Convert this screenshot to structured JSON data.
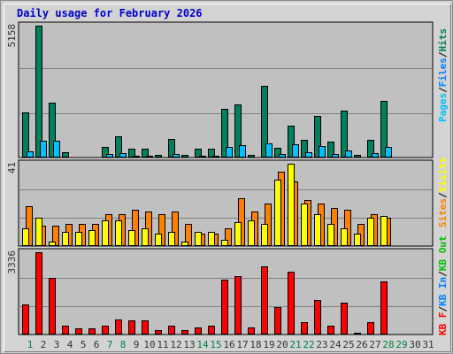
{
  "title": "Daily usage for February 2026",
  "colors": {
    "pages": "#00c0ff",
    "files": "#0080ff",
    "hits": "#00805c",
    "visits": "#ffff00",
    "sites": "#ff8000",
    "kbout": "#00c000",
    "kbin": "#0080ff",
    "kbf": "#ff0000",
    "text_gray": "#333333",
    "day_green": "#008040",
    "slash": "#000000"
  },
  "chart_data": [
    {
      "type": "bar",
      "name": "hits-files-pages",
      "ymax_label": "5158",
      "ylim": [
        0,
        5158
      ],
      "legend": [
        "Pages",
        "Files",
        "Hits"
      ],
      "categories": [
        1,
        2,
        3,
        4,
        5,
        6,
        7,
        8,
        9,
        10,
        11,
        12,
        13,
        14,
        15,
        16,
        17,
        18,
        19,
        20,
        21,
        22,
        23,
        24,
        25,
        26,
        27,
        28,
        29,
        30,
        31
      ],
      "series": [
        {
          "name": "Hits",
          "values": [
            1750,
            5158,
            2150,
            210,
            50,
            50,
            430,
            830,
            330,
            330,
            90,
            730,
            100,
            330,
            330,
            1910,
            2090,
            90,
            2790,
            380,
            1230,
            690,
            1620,
            610,
            1840,
            90,
            690,
            2210,
            0,
            0,
            0
          ]
        },
        {
          "name": "Pages",
          "values": [
            230,
            650,
            650,
            40,
            10,
            10,
            140,
            170,
            70,
            70,
            20,
            130,
            20,
            70,
            70,
            430,
            480,
            30,
            540,
            130,
            510,
            220,
            460,
            140,
            270,
            20,
            190,
            430,
            0,
            0,
            0
          ]
        }
      ]
    },
    {
      "type": "bar",
      "name": "visits-sites",
      "ymax_label": "41",
      "ylim": [
        0,
        41
      ],
      "legend": [
        "Visits",
        "Sites"
      ],
      "categories": [
        1,
        2,
        3,
        4,
        5,
        6,
        7,
        8,
        9,
        10,
        11,
        12,
        13,
        14,
        15,
        16,
        17,
        18,
        19,
        20,
        21,
        22,
        23,
        24,
        25,
        26,
        27,
        28,
        29,
        30,
        31
      ],
      "series": [
        {
          "name": "Visits",
          "values": [
            9,
            14,
            2,
            7,
            7,
            8,
            13,
            13,
            8,
            9,
            6,
            7,
            2,
            7,
            7,
            3,
            12,
            13,
            11,
            33,
            41,
            21,
            16,
            11,
            9,
            6,
            14,
            15,
            0,
            0,
            0
          ]
        },
        {
          "name": "Sites",
          "values": [
            20,
            10,
            10,
            11,
            11,
            11,
            16,
            16,
            18,
            17,
            16,
            17,
            11,
            6,
            6,
            9,
            24,
            17,
            21,
            37,
            32,
            23,
            21,
            19,
            18,
            11,
            16,
            14,
            0,
            0,
            0
          ]
        }
      ]
    },
    {
      "type": "bar",
      "name": "kbf",
      "ymax_label": "3336",
      "ylim": [
        0,
        3336
      ],
      "legend": [
        "KB F",
        "KB In",
        "KB Out"
      ],
      "categories": [
        1,
        2,
        3,
        4,
        5,
        6,
        7,
        8,
        9,
        10,
        11,
        12,
        13,
        14,
        15,
        16,
        17,
        18,
        19,
        20,
        21,
        22,
        23,
        24,
        25,
        26,
        27,
        28,
        29,
        30,
        31
      ],
      "series": [
        {
          "name": "KB F",
          "values": [
            1220,
            3336,
            2300,
            370,
            240,
            240,
            370,
            600,
            560,
            560,
            170,
            370,
            170,
            270,
            370,
            2230,
            2360,
            270,
            2750,
            1120,
            2530,
            520,
            1400,
            370,
            1290,
            80,
            520,
            2140,
            0,
            0,
            0
          ]
        }
      ]
    }
  ],
  "day_labels": [
    {
      "text": "1",
      "weekend": true
    },
    {
      "text": "2",
      "weekend": false
    },
    {
      "text": "3",
      "weekend": false
    },
    {
      "text": "4",
      "weekend": false
    },
    {
      "text": "5",
      "weekend": false
    },
    {
      "text": "6",
      "weekend": false
    },
    {
      "text": "7",
      "weekend": true
    },
    {
      "text": "8",
      "weekend": true
    },
    {
      "text": "9",
      "weekend": false
    },
    {
      "text": "10",
      "weekend": false
    },
    {
      "text": "11",
      "weekend": false
    },
    {
      "text": "12",
      "weekend": false
    },
    {
      "text": "13",
      "weekend": false
    },
    {
      "text": "14",
      "weekend": true
    },
    {
      "text": "15",
      "weekend": true
    },
    {
      "text": "16",
      "weekend": false
    },
    {
      "text": "17",
      "weekend": false
    },
    {
      "text": "18",
      "weekend": false
    },
    {
      "text": "19",
      "weekend": false
    },
    {
      "text": "20",
      "weekend": false
    },
    {
      "text": "21",
      "weekend": true
    },
    {
      "text": "22",
      "weekend": true
    },
    {
      "text": "23",
      "weekend": false
    },
    {
      "text": "24",
      "weekend": false
    },
    {
      "text": "25",
      "weekend": false
    },
    {
      "text": "26",
      "weekend": false
    },
    {
      "text": "27",
      "weekend": false
    },
    {
      "text": "28",
      "weekend": true
    },
    {
      "text": "29",
      "weekend": true
    },
    {
      "text": "30",
      "weekend": false
    },
    {
      "text": "31",
      "weekend": false
    }
  ],
  "legend_text": {
    "top": {
      "pages": "Pages",
      "files": "Files",
      "hits": "Hits",
      "sep": "/"
    },
    "mid": {
      "sites": "Sites",
      "visits": "Visits",
      "sep": "/"
    },
    "bot": {
      "kbf": "KB F",
      "kbin": "KB In",
      "kbout": "KB Out",
      "sep": "/"
    }
  }
}
